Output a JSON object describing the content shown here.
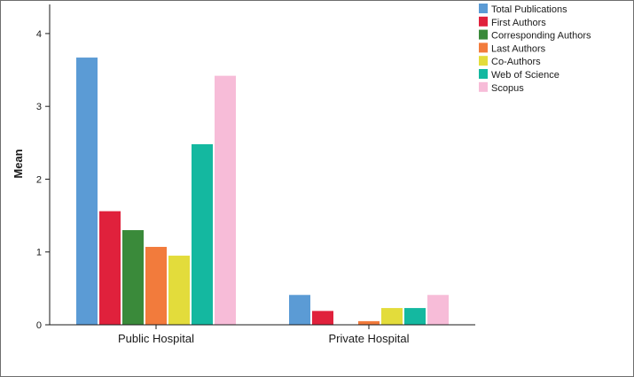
{
  "chart_data": {
    "type": "bar",
    "title": "",
    "xlabel": "",
    "ylabel": "Mean",
    "ylim": [
      0,
      4.4
    ],
    "yticks": [
      0,
      1,
      2,
      3,
      4
    ],
    "grid": false,
    "legend_position": "top-right",
    "categories": [
      "Public Hospital",
      "Private Hospital"
    ],
    "series": [
      {
        "name": "Total Publications",
        "color": "#5b9bd5",
        "values": [
          3.67,
          0.41
        ]
      },
      {
        "name": "First Authors",
        "color": "#e0213c",
        "values": [
          1.56,
          0.19
        ]
      },
      {
        "name": "Corresponding Authors",
        "color": "#3a8a3a",
        "values": [
          1.3,
          0.0
        ]
      },
      {
        "name": "Last Authors",
        "color": "#f27b3c",
        "values": [
          1.07,
          0.05
        ]
      },
      {
        "name": "Co-Authors",
        "color": "#e3dc3b",
        "values": [
          0.95,
          0.23
        ]
      },
      {
        "name": "Web of Science",
        "color": "#14b8a0",
        "values": [
          2.48,
          0.23
        ]
      },
      {
        "name": "Scopus",
        "color": "#f7bcd8",
        "values": [
          3.42,
          0.41
        ]
      }
    ]
  }
}
